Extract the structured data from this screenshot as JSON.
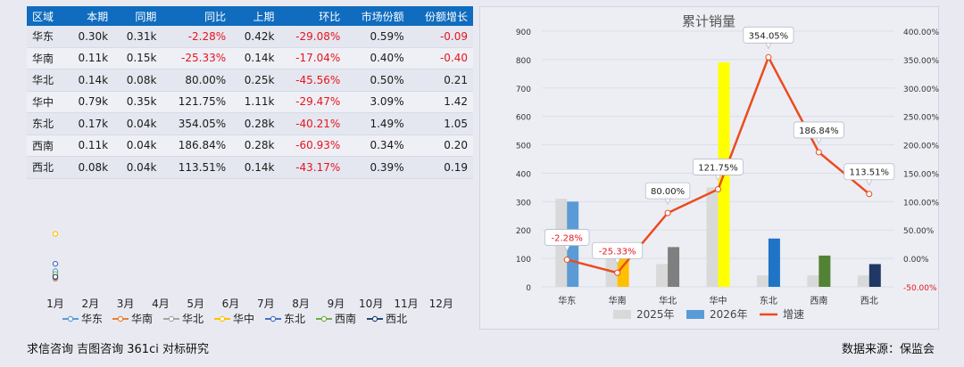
{
  "table": {
    "headers": [
      "区域",
      "本期",
      "同期",
      "同比",
      "上期",
      "环比",
      "市场份额",
      "份额增长"
    ],
    "rows": [
      [
        "华东",
        "0.30k",
        "0.31k",
        "-2.28%",
        "0.42k",
        "-29.08%",
        "0.59%",
        "-0.09"
      ],
      [
        "华南",
        "0.11k",
        "0.15k",
        "-25.33%",
        "0.14k",
        "-17.04%",
        "0.40%",
        "-0.40"
      ],
      [
        "华北",
        "0.14k",
        "0.08k",
        "80.00%",
        "0.25k",
        "-45.56%",
        "0.50%",
        "0.21"
      ],
      [
        "华中",
        "0.79k",
        "0.35k",
        "121.75%",
        "1.11k",
        "-29.47%",
        "3.09%",
        "1.42"
      ],
      [
        "东北",
        "0.17k",
        "0.04k",
        "354.05%",
        "0.28k",
        "-40.21%",
        "1.49%",
        "1.05"
      ],
      [
        "西南",
        "0.11k",
        "0.04k",
        "186.84%",
        "0.28k",
        "-60.93%",
        "0.34%",
        "0.20"
      ],
      [
        "西北",
        "0.08k",
        "0.04k",
        "113.51%",
        "0.14k",
        "-43.17%",
        "0.39%",
        "0.19"
      ]
    ]
  },
  "colors": {
    "header_bg": "#0f6cbe",
    "negative": "#e8141e",
    "bar_2025": "#d9d9d9",
    "growth_line": "#ec4b1c"
  },
  "chart_data": [
    {
      "type": "line",
      "x": [
        "1月",
        "2月",
        "3月",
        "4月",
        "5月",
        "6月",
        "7月",
        "8月",
        "9月",
        "10月",
        "11月",
        "12月"
      ],
      "series": [
        {
          "name": "华东",
          "color": "#5b9bd5",
          "values": [
            0.01,
            null,
            null,
            null,
            null,
            null,
            null,
            null,
            null,
            null,
            null,
            null
          ]
        },
        {
          "name": "华南",
          "color": "#ed7d31",
          "values": [
            0.002,
            null,
            null,
            null,
            null,
            null,
            null,
            null,
            null,
            null,
            null,
            null
          ]
        },
        {
          "name": "华北",
          "color": "#a5a5a5",
          "values": [
            0.003,
            null,
            null,
            null,
            null,
            null,
            null,
            null,
            null,
            null,
            null,
            null
          ]
        },
        {
          "name": "华中",
          "color": "#ffc000",
          "values": [
            0.05,
            null,
            null,
            null,
            null,
            null,
            null,
            null,
            null,
            null,
            null,
            null
          ]
        },
        {
          "name": "东北",
          "color": "#4472c4",
          "values": [
            0.018,
            null,
            null,
            null,
            null,
            null,
            null,
            null,
            null,
            null,
            null,
            null
          ]
        },
        {
          "name": "西南",
          "color": "#70ad47",
          "values": [
            0.007,
            null,
            null,
            null,
            null,
            null,
            null,
            null,
            null,
            null,
            null,
            null
          ]
        },
        {
          "name": "西北",
          "color": "#264478",
          "values": [
            0.004,
            null,
            null,
            null,
            null,
            null,
            null,
            null,
            null,
            null,
            null,
            null
          ]
        }
      ],
      "ylim": [
        0,
        0.1
      ],
      "legend": "bottom"
    },
    {
      "type": "bar",
      "title": "累计销量",
      "categories": [
        "华东",
        "华南",
        "华北",
        "华中",
        "东北",
        "西南",
        "西北"
      ],
      "series": [
        {
          "name": "2025年",
          "values": [
            310,
            150,
            80,
            350,
            40,
            40,
            40
          ]
        },
        {
          "name": "2026年",
          "values": [
            300,
            110,
            140,
            790,
            170,
            110,
            80
          ],
          "colors": [
            "#5b9bd5",
            "#ffc000",
            "#7f7f7f",
            "#ffff00",
            "#1f74c5",
            "#548235",
            "#203864"
          ]
        },
        {
          "name": "增速",
          "axis": "right",
          "values": [
            -2.28,
            -25.33,
            80.0,
            121.75,
            354.05,
            186.84,
            113.51
          ],
          "labels": [
            "-2.28%",
            "-25.33%",
            "80.00%",
            "121.75%",
            "354.05%",
            "186.84%",
            "113.51%"
          ]
        }
      ],
      "ylim": [
        0,
        900
      ],
      "yticks": [
        "0",
        "100",
        "200",
        "300",
        "400",
        "500",
        "600",
        "700",
        "800",
        "900"
      ],
      "y2lim": [
        -50,
        400
      ],
      "y2ticks": [
        "-50.00%",
        "0.00%",
        "50.00%",
        "100.00%",
        "150.00%",
        "200.00%",
        "250.00%",
        "300.00%",
        "350.00%",
        "400.00%"
      ],
      "legend": "bottom",
      "grid": true
    }
  ],
  "footer": {
    "left": "求信咨询  吉图咨询  361ci  对标研究",
    "right": "数据来源：保监会"
  }
}
